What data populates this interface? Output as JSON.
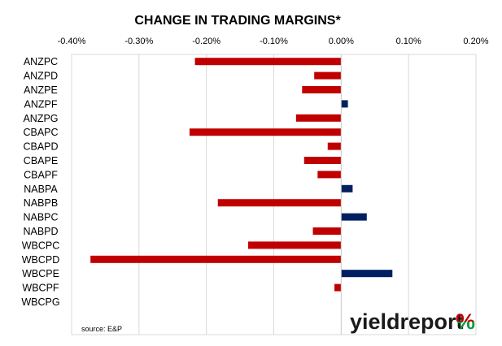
{
  "chart_data": {
    "type": "bar",
    "orientation": "horizontal",
    "title": "CHANGE IN TRADING MARGINS*",
    "source": "source: E&P",
    "xlim": [
      -0.004,
      0.002
    ],
    "xticks": [
      -0.004,
      -0.003,
      -0.002,
      -0.001,
      0,
      0.001,
      0.002
    ],
    "xtick_labels": [
      "-0.40%",
      "-0.30%",
      "-0.20%",
      "-0.10%",
      "0.00%",
      "0.10%",
      "0.20%"
    ],
    "categories": [
      "ANZPC",
      "ANZPD",
      "ANZPE",
      "ANZPF",
      "ANZPG",
      "CBAPC",
      "CBAPD",
      "CBAPE",
      "CBAPF",
      "NABPA",
      "NABPB",
      "NABPC",
      "NABPD",
      "WBCPC",
      "WBCPD",
      "WBCPE",
      "WBCPF",
      "WBCPG"
    ],
    "values": [
      -0.00217,
      -0.0004,
      -0.00058,
      0.0001,
      -0.00067,
      -0.00225,
      -0.0002,
      -0.00055,
      -0.00035,
      0.00017,
      -0.00183,
      0.00038,
      -0.00042,
      -0.00138,
      -0.00372,
      0.00076,
      -0.0001,
      0.0
    ],
    "colors": {
      "negative": "#c00000",
      "positive": "#002060"
    },
    "grid": true,
    "x_axis_position": "top",
    "legend": "none"
  },
  "logo": {
    "text_bold": "yield",
    "text_light": "report",
    "symbol": "%",
    "color_dark": "#1a1a1a",
    "color_light": "#7f7f7f",
    "color_symbol_top": "#c00000",
    "color_symbol_bottom": "#0a9a3a"
  }
}
